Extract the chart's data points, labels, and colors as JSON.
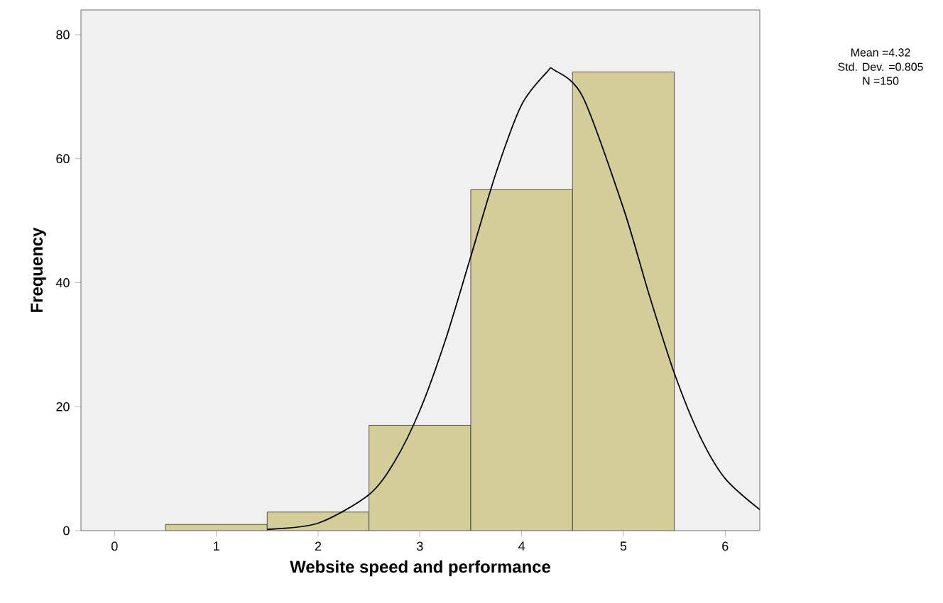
{
  "chart_data": {
    "type": "histogram",
    "xlabel": "Website speed and performance",
    "ylabel": "Frequency",
    "bins": [
      0.5,
      1.5,
      2.5,
      3.5,
      4.5,
      5.5
    ],
    "values": [
      1,
      3,
      17,
      55,
      74
    ],
    "color": "#d3ce97",
    "series": [
      {
        "type": "line",
        "color": "#000000",
        "x": [
          1.5,
          2,
          2.5,
          2.75,
          3,
          3.25,
          3.5,
          3.75,
          4,
          4.25,
          4.32,
          4.6,
          5,
          5.25,
          5.5,
          5.75,
          6,
          6.34
        ],
        "values": [
          0.2,
          1.2,
          5.8,
          11.1,
          19.4,
          30.7,
          44.2,
          57.8,
          68.7,
          74,
          74.3,
          70,
          52,
          38.2,
          25.4,
          15.3,
          8.4,
          3.4
        ]
      }
    ],
    "xlim": [
      -0.33,
      6.34
    ],
    "ylim": [
      0,
      84
    ],
    "xticks": [
      0,
      1,
      2,
      3,
      4,
      5,
      6
    ],
    "yticks": [
      0,
      20,
      40,
      60,
      80
    ],
    "grid": false,
    "marker": "none",
    "annotations": [
      "Mean =4.32",
      "Std. Dev. =0.805",
      "N =150"
    ]
  }
}
